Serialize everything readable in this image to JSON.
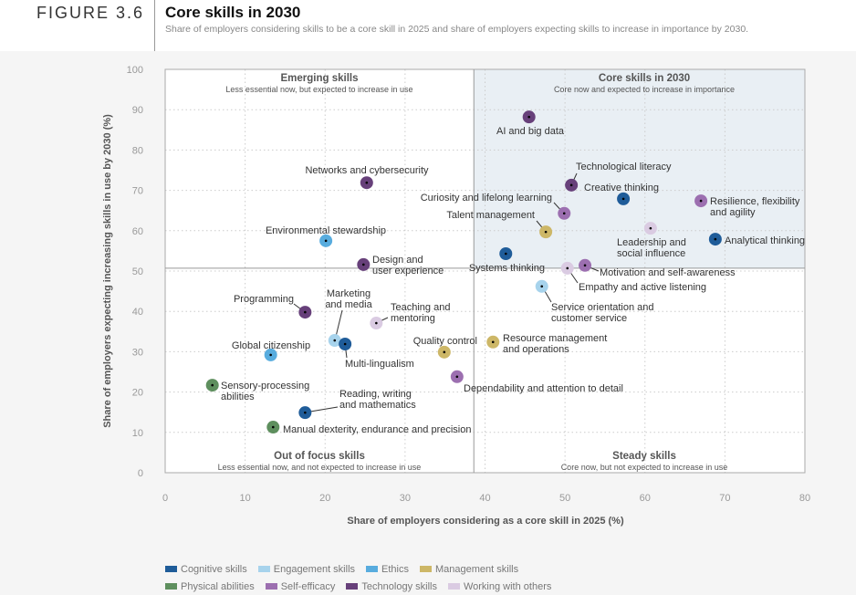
{
  "header": {
    "figure_label": "FIGURE 3.6",
    "title": "Core skills in 2030",
    "subtitle": "Share of employers considering skills to be a core skill in 2025 and share of employers expecting skills to increase in importance by 2030."
  },
  "chart_data": {
    "type": "scatter",
    "xlabel": "Share of employers considering as a core skill in 2025 (%)",
    "ylabel": "Share of employers expecting increasing skills in use by 2030 (%)",
    "xlim": [
      0,
      80
    ],
    "ylim": [
      0,
      100
    ],
    "xticks": [
      0,
      10,
      20,
      30,
      40,
      50,
      60,
      70,
      80
    ],
    "yticks": [
      0,
      10,
      20,
      30,
      40,
      50,
      60,
      70,
      80,
      90,
      100
    ],
    "grid": true,
    "x_divider": 38.6,
    "y_divider": 50.7,
    "quadrants": [
      {
        "title": "Emerging skills",
        "subtitle": "Less essential now, but expected to increase in use"
      },
      {
        "title": "Core skills in 2030",
        "subtitle": "Core now and expected to increase in importance"
      },
      {
        "title": "Out of focus skills",
        "subtitle": "Less essential now, and not expected to increase in use"
      },
      {
        "title": "Steady skills",
        "subtitle": "Core now, but not expected to increase in use"
      }
    ],
    "categories": [
      {
        "name": "Cognitive skills",
        "color": "#1f5c99"
      },
      {
        "name": "Engagement skills",
        "color": "#a7d3ec"
      },
      {
        "name": "Ethics",
        "color": "#58acde"
      },
      {
        "name": "Management skills",
        "color": "#cdb767"
      },
      {
        "name": "Physical abilities",
        "color": "#5e8f5e"
      },
      {
        "name": "Self-efficacy",
        "color": "#9c6fb0"
      },
      {
        "name": "Technology skills",
        "color": "#67407a"
      },
      {
        "name": "Working with others",
        "color": "#dacbe2"
      }
    ],
    "points": [
      {
        "label": [
          "AI and big data"
        ],
        "x": 45.5,
        "y": 88.2,
        "cat": 6
      },
      {
        "label": [
          "Technological literacy"
        ],
        "x": 50.8,
        "y": 71.3,
        "cat": 6
      },
      {
        "label": [
          "Creative thinking"
        ],
        "x": 57.3,
        "y": 67.9,
        "cat": 0
      },
      {
        "label": [
          "Curiosity and lifelong learning"
        ],
        "x": 49.9,
        "y": 64.3,
        "cat": 5
      },
      {
        "label": [
          "Talent management"
        ],
        "x": 47.6,
        "y": 59.7,
        "cat": 3
      },
      {
        "label": [
          "Resilience, flexibility",
          "and agility"
        ],
        "x": 67.0,
        "y": 67.4,
        "cat": 5
      },
      {
        "label": [
          "Leadership and",
          "social influence"
        ],
        "x": 60.7,
        "y": 60.6,
        "cat": 7
      },
      {
        "label": [
          "Analytical thinking"
        ],
        "x": 68.8,
        "y": 57.9,
        "cat": 0
      },
      {
        "label": [
          "Systems thinking"
        ],
        "x": 42.6,
        "y": 54.3,
        "cat": 0
      },
      {
        "label": [
          "Empathy and active listening"
        ],
        "x": 50.3,
        "y": 50.7,
        "cat": 7
      },
      {
        "label": [
          "Motivation and self-awareness"
        ],
        "x": 52.5,
        "y": 51.4,
        "cat": 5
      },
      {
        "label": [
          "Service orientation and",
          "customer service"
        ],
        "x": 47.1,
        "y": 46.2,
        "cat": 1
      },
      {
        "label": [
          "Resource management",
          "and operations"
        ],
        "x": 41.0,
        "y": 32.4,
        "cat": 3
      },
      {
        "label": [
          "Quality control"
        ],
        "x": 34.9,
        "y": 29.9,
        "cat": 3
      },
      {
        "label": [
          "Dependability and attention to detail"
        ],
        "x": 36.5,
        "y": 23.8,
        "cat": 5
      },
      {
        "label": [
          "Networks and cybersecurity"
        ],
        "x": 25.2,
        "y": 71.9,
        "cat": 6
      },
      {
        "label": [
          "Environmental stewardship"
        ],
        "x": 20.1,
        "y": 57.5,
        "cat": 2
      },
      {
        "label": [
          "Design and",
          "user experience"
        ],
        "x": 24.8,
        "y": 51.6,
        "cat": 6
      },
      {
        "label": [
          "Programming"
        ],
        "x": 17.5,
        "y": 39.8,
        "cat": 6
      },
      {
        "label": [
          "Marketing",
          "and media"
        ],
        "x": 21.2,
        "y": 32.8,
        "cat": 1
      },
      {
        "label": [
          "Teaching and",
          "mentoring"
        ],
        "x": 26.4,
        "y": 37.1,
        "cat": 7
      },
      {
        "label": [
          "Multi-lingualism"
        ],
        "x": 22.5,
        "y": 31.9,
        "cat": 0
      },
      {
        "label": [
          "Global citizenship"
        ],
        "x": 13.2,
        "y": 29.2,
        "cat": 2
      },
      {
        "label": [
          "Sensory-processing",
          "abilities"
        ],
        "x": 5.9,
        "y": 21.7,
        "cat": 4
      },
      {
        "label": [
          "Reading, writing",
          "and mathematics"
        ],
        "x": 17.5,
        "y": 14.9,
        "cat": 0
      },
      {
        "label": [
          "Manual dexterity, endurance and precision"
        ],
        "x": 13.5,
        "y": 11.3,
        "cat": 4
      }
    ]
  }
}
